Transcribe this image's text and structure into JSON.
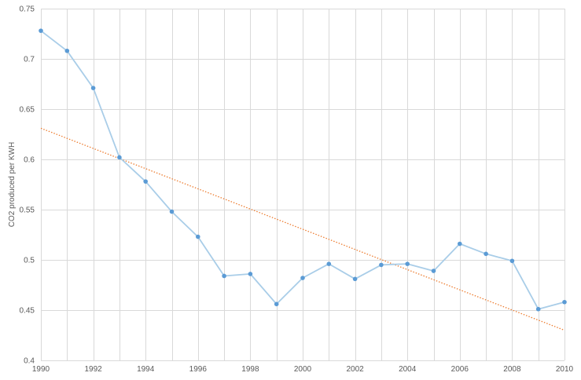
{
  "chart_data": {
    "type": "line",
    "title": "",
    "xlabel": "",
    "ylabel": "CO2 produced per KWH",
    "xlim": [
      1990,
      2010
    ],
    "ylim": [
      0.4,
      0.75
    ],
    "grid": true,
    "x_ticks": [
      "1990",
      "1992",
      "1994",
      "1996",
      "1998",
      "2000",
      "2002",
      "2004",
      "2006",
      "2008",
      "2010"
    ],
    "y_ticks": [
      "0.4",
      "0.45",
      "0.5",
      "0.55",
      "0.6",
      "0.65",
      "0.7",
      "0.75"
    ],
    "series": [
      {
        "x": [
          1990,
          1991,
          1992,
          1993,
          1994,
          1995,
          1996,
          1997,
          1998,
          1999,
          2000,
          2001,
          2002,
          2003,
          2004,
          2005,
          2006,
          2007,
          2008,
          2009,
          2010
        ],
        "y": [
          0.728,
          0.708,
          0.671,
          0.602,
          0.578,
          0.548,
          0.523,
          0.484,
          0.486,
          0.456,
          0.482,
          0.496,
          0.481,
          0.495,
          0.496,
          0.489,
          0.516,
          0.506,
          0.499,
          0.451,
          0.458
        ],
        "color": "#a9cde8",
        "marker_color": "#5b9bd5"
      }
    ],
    "trendline": {
      "kind": "linear",
      "x": [
        1990,
        2010
      ],
      "y": [
        0.631,
        0.43
      ],
      "color": "#ed7d31",
      "style": "dotted"
    }
  }
}
